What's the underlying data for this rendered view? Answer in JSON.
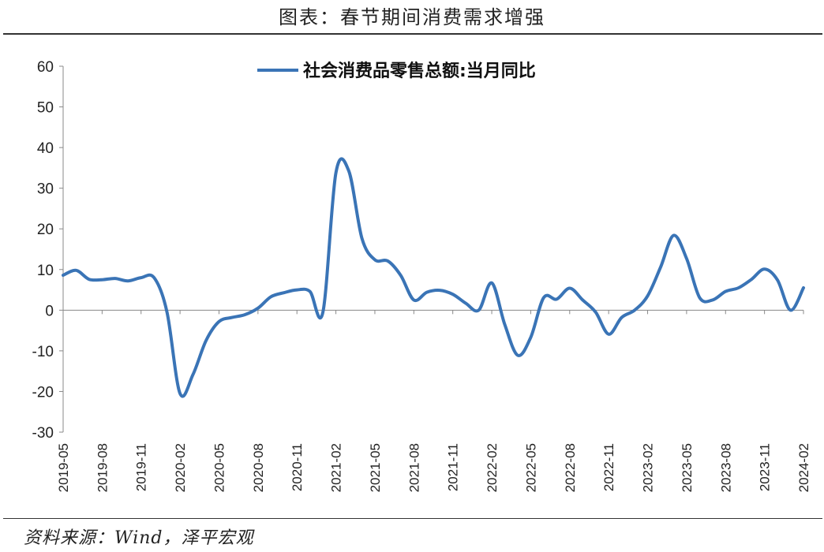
{
  "figure_title": "图表：春节期间消费需求增强",
  "source": "资料来源：Wind，泽平宏观",
  "chart_data": {
    "type": "line",
    "title": "",
    "xlabel": "",
    "ylabel": "",
    "ylim": [
      -30,
      60
    ],
    "yticks": [
      60,
      50,
      40,
      30,
      20,
      10,
      0,
      -10,
      -20,
      -30
    ],
    "xtick_labels": [
      "2019-05",
      "2019-08",
      "2019-11",
      "2020-02",
      "2020-05",
      "2020-08",
      "2020-11",
      "2021-02",
      "2021-05",
      "2021-08",
      "2021-11",
      "2022-02",
      "2022-05",
      "2022-08",
      "2022-11",
      "2023-02",
      "2023-05",
      "2023-08",
      "2023-11",
      "2024-02"
    ],
    "grid": false,
    "legend_position": "top-center",
    "x": [
      "2019-05",
      "2019-06",
      "2019-07",
      "2019-08",
      "2019-09",
      "2019-10",
      "2019-11",
      "2019-12",
      "2020-01",
      "2020-02",
      "2020-03",
      "2020-04",
      "2020-05",
      "2020-06",
      "2020-07",
      "2020-08",
      "2020-09",
      "2020-10",
      "2020-11",
      "2020-12",
      "2021-01",
      "2021-02",
      "2021-03",
      "2021-04",
      "2021-05",
      "2021-06",
      "2021-07",
      "2021-08",
      "2021-09",
      "2021-10",
      "2021-11",
      "2021-12",
      "2022-01",
      "2022-02",
      "2022-03",
      "2022-04",
      "2022-05",
      "2022-06",
      "2022-07",
      "2022-08",
      "2022-09",
      "2022-10",
      "2022-11",
      "2022-12",
      "2023-01",
      "2023-02",
      "2023-03",
      "2023-04",
      "2023-05",
      "2023-06",
      "2023-07",
      "2023-08",
      "2023-09",
      "2023-10",
      "2023-11",
      "2023-12",
      "2024-01",
      "2024-02"
    ],
    "series": [
      {
        "name": "社会消费品零售总额:当月同比",
        "color": "#3a74b6",
        "values": [
          8.6,
          9.8,
          7.6,
          7.5,
          7.8,
          7.2,
          8.0,
          8.0,
          -0.5,
          -20.5,
          -15.8,
          -7.5,
          -2.8,
          -1.8,
          -1.1,
          0.5,
          3.3,
          4.3,
          5.0,
          4.6,
          -0.5,
          33.8,
          34.2,
          17.7,
          12.4,
          12.1,
          8.5,
          2.5,
          4.4,
          4.9,
          3.9,
          1.7,
          0.0,
          6.7,
          -3.5,
          -11.1,
          -6.7,
          3.1,
          2.7,
          5.4,
          2.5,
          -0.5,
          -5.9,
          -1.8,
          0.0,
          3.5,
          10.6,
          18.4,
          12.7,
          3.1,
          2.5,
          4.6,
          5.5,
          7.6,
          10.1,
          7.4,
          0.0,
          5.5
        ]
      }
    ]
  }
}
